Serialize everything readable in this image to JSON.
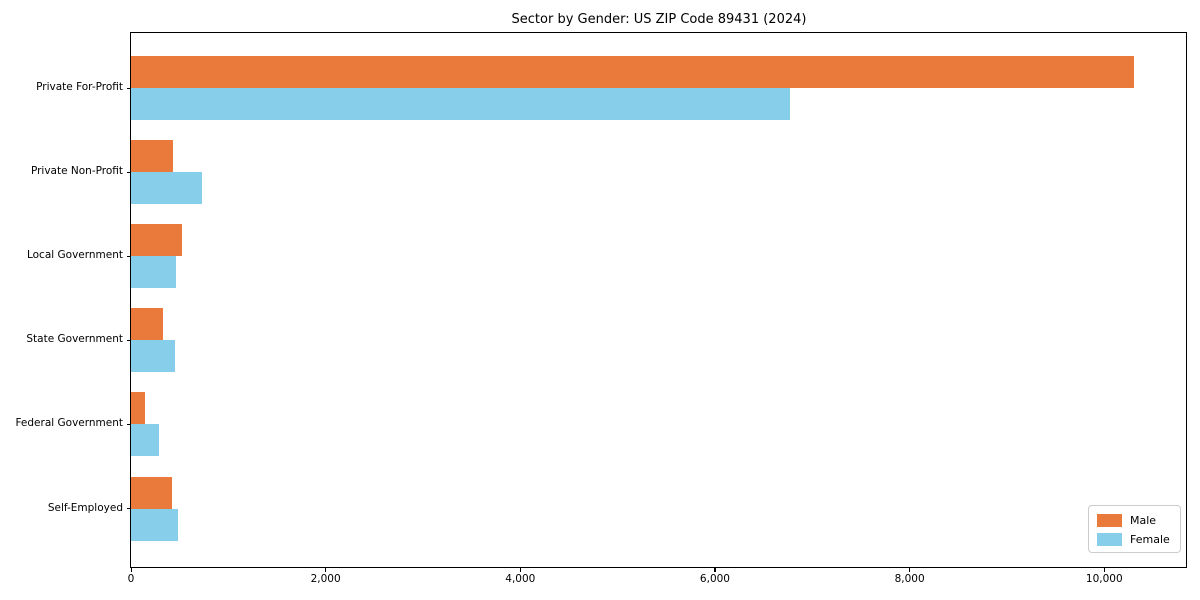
{
  "chart_data": {
    "type": "bar",
    "orientation": "horizontal",
    "title": "Sector by Gender: US ZIP Code 89431 (2024)",
    "categories": [
      "Private For-Profit",
      "Private Non-Profit",
      "Local Government",
      "State Government",
      "Federal Government",
      "Self-Employed"
    ],
    "series": [
      {
        "name": "Male",
        "color": "#e97a3c",
        "values": [
          10310,
          430,
          520,
          330,
          140,
          420
        ]
      },
      {
        "name": "Female",
        "color": "#87ceeb",
        "values": [
          6770,
          730,
          460,
          450,
          290,
          480
        ]
      }
    ],
    "xlabel": "",
    "ylabel": "",
    "xlim": [
      0,
      10850
    ],
    "xticks": [
      0,
      2000,
      4000,
      6000,
      8000,
      10000
    ],
    "xtick_labels": [
      "0",
      "2,000",
      "4,000",
      "6,000",
      "8,000",
      "10,000"
    ],
    "grid": false,
    "legend": {
      "position": "lower right",
      "entries": [
        "Male",
        "Female"
      ]
    },
    "axis_color": "#000000",
    "background": "#ffffff"
  }
}
